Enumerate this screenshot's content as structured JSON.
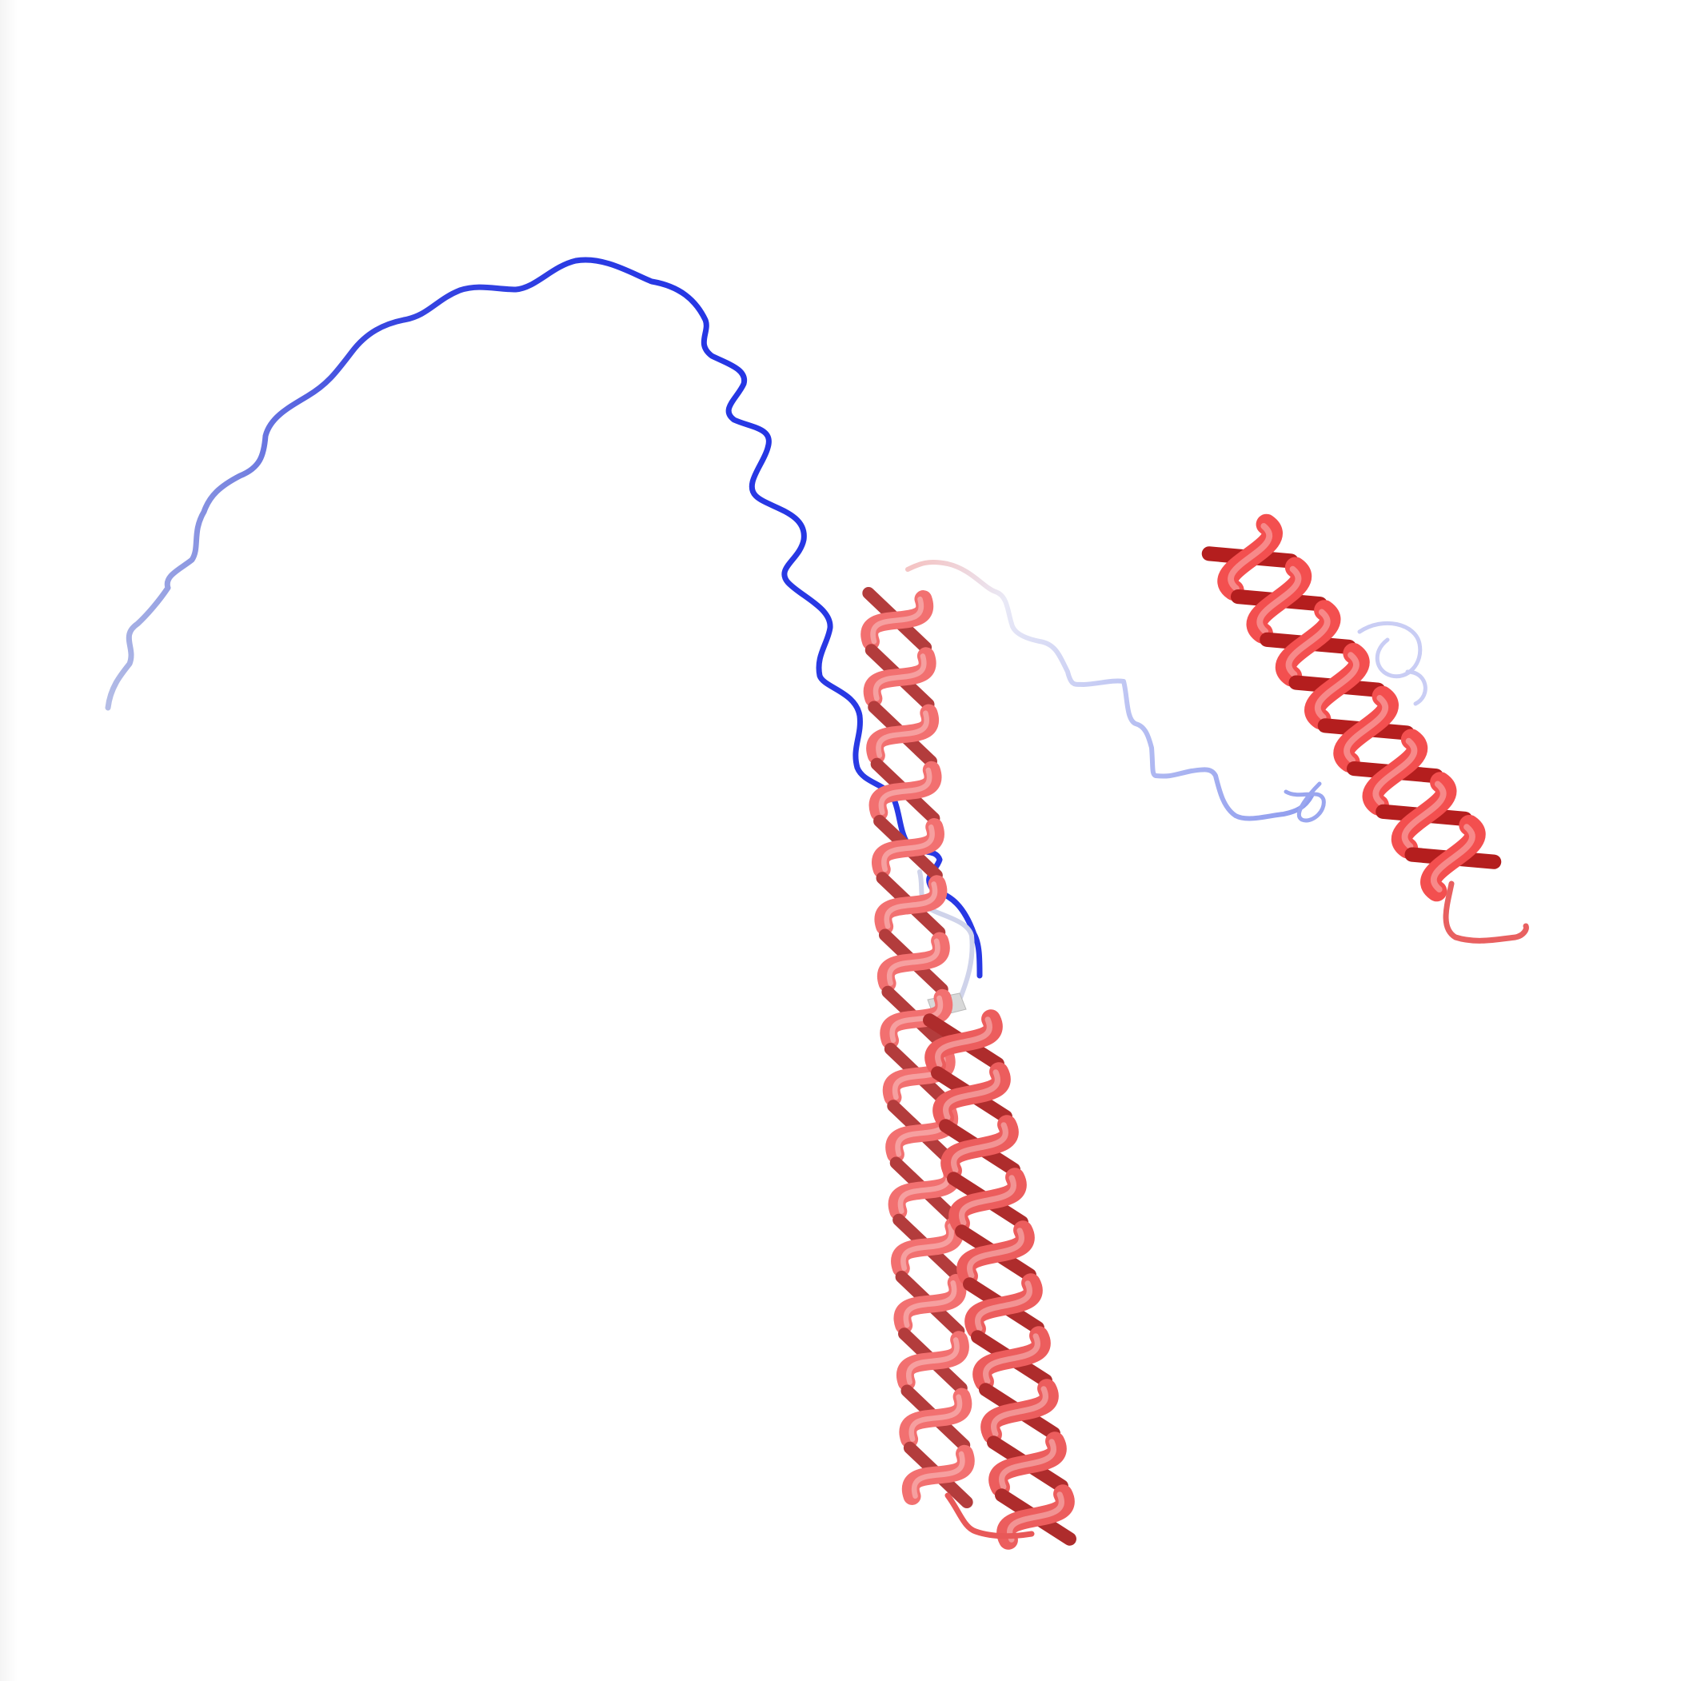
{
  "viewer": {
    "background_color": "#ffffff"
  },
  "structure": {
    "representation": "ribbon",
    "color_scheme": {
      "high": "#ff0000",
      "mid": "#ffffff",
      "low": "#0000ff"
    },
    "segments": [
      {
        "kind": "coil",
        "color": "#2636e6"
      },
      {
        "kind": "coil",
        "color": "#a9b4f0"
      },
      {
        "kind": "helix",
        "color": "#ef5050"
      },
      {
        "kind": "helix",
        "color": "#e83a3a"
      },
      {
        "kind": "coil",
        "color": "#c9cdf4"
      },
      {
        "kind": "helix",
        "color": "#f02828"
      },
      {
        "kind": "coil",
        "color": "#e85a5a"
      }
    ]
  }
}
